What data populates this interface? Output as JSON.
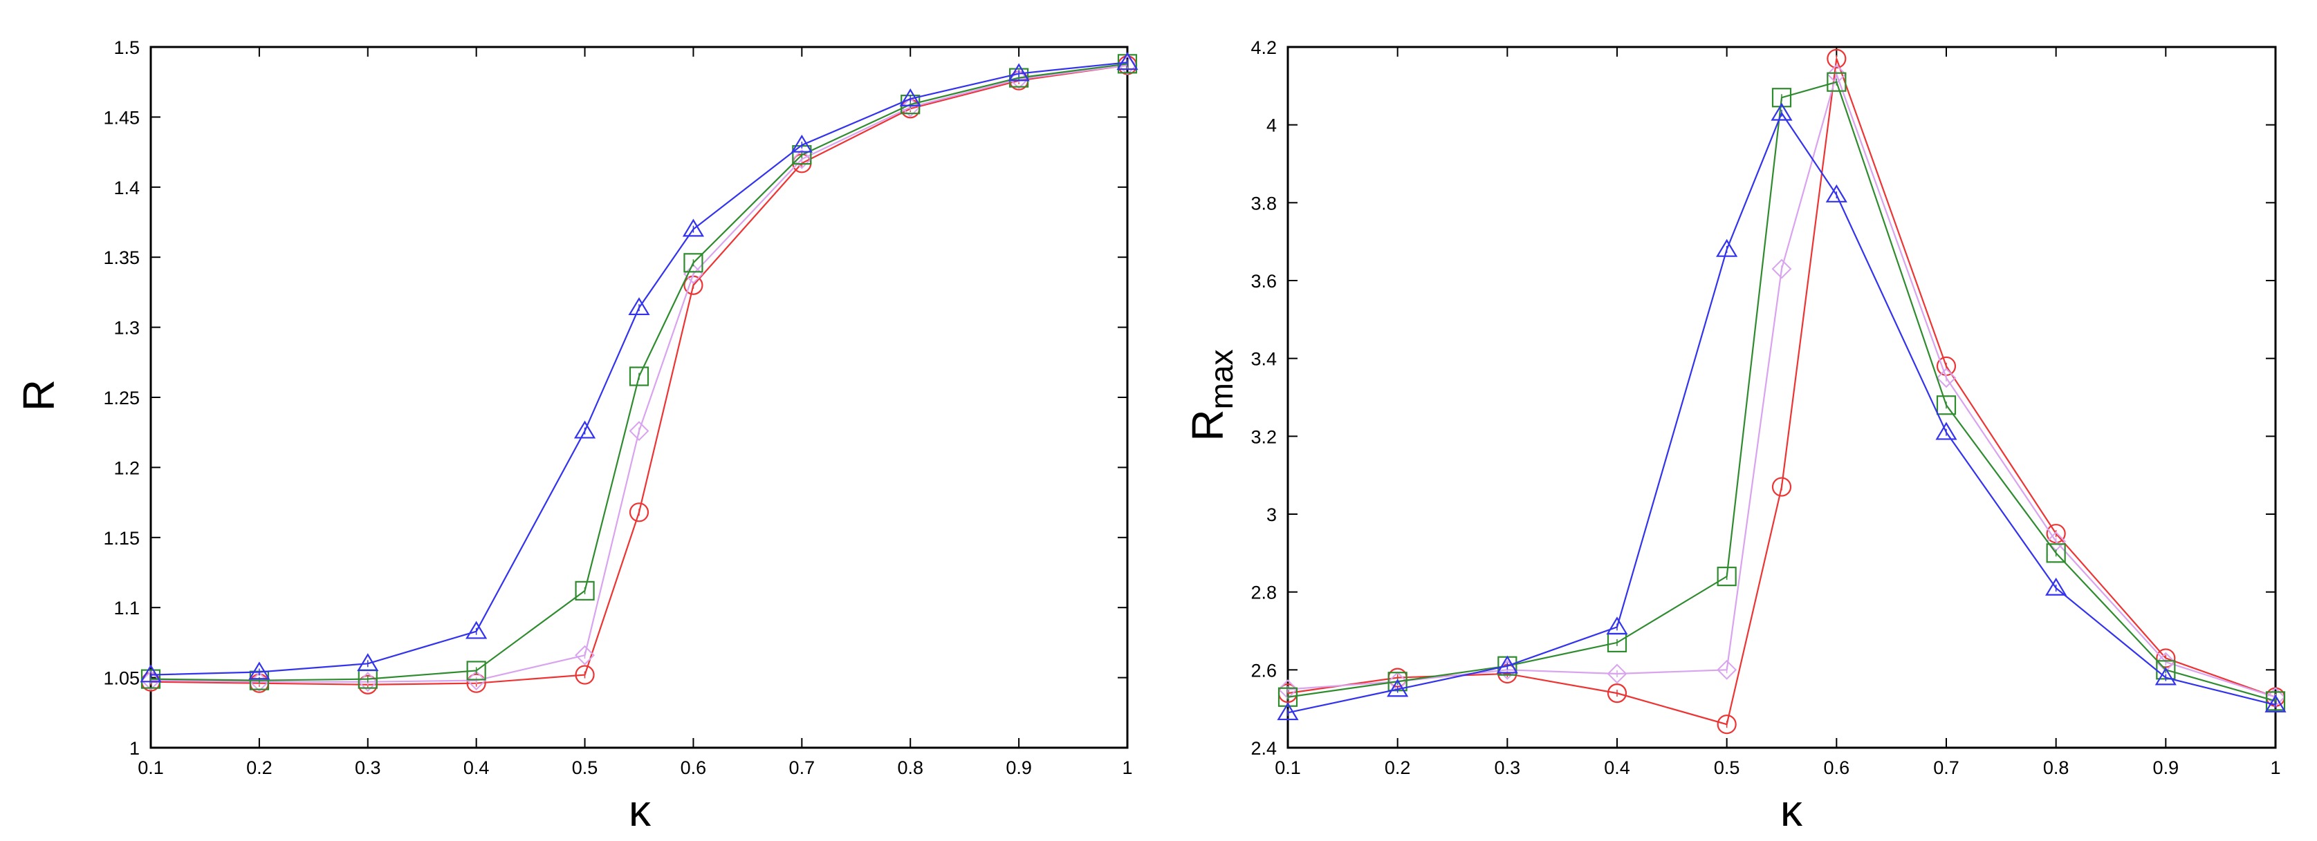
{
  "chart_data": [
    {
      "type": "line",
      "title": "",
      "xlabel": "κ",
      "ylabel": "R",
      "ylabel_sub": "",
      "xlim": [
        0.1,
        1.0
      ],
      "ylim": [
        1.0,
        1.5
      ],
      "xticks": [
        0.1,
        0.2,
        0.3,
        0.4,
        0.5,
        0.6,
        0.7,
        0.8,
        0.9,
        1.0
      ],
      "xtick_labels": [
        "0.1",
        "0.2",
        "0.3",
        "0.4",
        "0.5",
        "0.6",
        "0.7",
        "0.8",
        "0.9",
        "1"
      ],
      "yticks": [
        1.0,
        1.05,
        1.1,
        1.15,
        1.2,
        1.25,
        1.3,
        1.35,
        1.4,
        1.45,
        1.5
      ],
      "ytick_labels": [
        "1",
        "1.05",
        "1.1",
        "1.15",
        "1.2",
        "1.25",
        "1.3",
        "1.35",
        "1.4",
        "1.45",
        "1.5"
      ],
      "grid": false,
      "legend": "none",
      "series": [
        {
          "marker": "triangle",
          "color": "#3333ee",
          "x": [
            0.1,
            0.2,
            0.3,
            0.4,
            0.5,
            0.55,
            0.6,
            0.7,
            0.8,
            0.9,
            1.0
          ],
          "y": [
            1.052,
            1.054,
            1.06,
            1.083,
            1.226,
            1.314,
            1.37,
            1.43,
            1.463,
            1.481,
            1.489
          ]
        },
        {
          "marker": "square",
          "color": "#2e8b2e",
          "x": [
            0.1,
            0.2,
            0.3,
            0.4,
            0.5,
            0.55,
            0.6,
            0.7,
            0.8,
            0.9,
            1.0
          ],
          "y": [
            1.049,
            1.048,
            1.049,
            1.055,
            1.112,
            1.265,
            1.346,
            1.423,
            1.459,
            1.478,
            1.488
          ]
        },
        {
          "marker": "diamond",
          "color": "#d9a3ef",
          "x": [
            0.1,
            0.2,
            0.3,
            0.4,
            0.5,
            0.55,
            0.6,
            0.7,
            0.8,
            0.9,
            1.0
          ],
          "y": [
            1.048,
            1.047,
            1.047,
            1.048,
            1.066,
            1.226,
            1.338,
            1.42,
            1.457,
            1.477,
            1.487
          ]
        },
        {
          "marker": "circle",
          "color": "#ee3333",
          "x": [
            0.1,
            0.2,
            0.3,
            0.4,
            0.5,
            0.55,
            0.6,
            0.7,
            0.8,
            0.9,
            1.0
          ],
          "y": [
            1.047,
            1.046,
            1.045,
            1.046,
            1.052,
            1.168,
            1.33,
            1.417,
            1.456,
            1.476,
            1.487
          ]
        }
      ]
    },
    {
      "type": "line",
      "title": "",
      "xlabel": "κ",
      "ylabel": "R",
      "ylabel_sub": "max",
      "xlim": [
        0.1,
        1.0
      ],
      "ylim": [
        2.4,
        4.2
      ],
      "xticks": [
        0.1,
        0.2,
        0.3,
        0.4,
        0.5,
        0.6,
        0.7,
        0.8,
        0.9,
        1.0
      ],
      "xtick_labels": [
        "0.1",
        "0.2",
        "0.3",
        "0.4",
        "0.5",
        "0.6",
        "0.7",
        "0.8",
        "0.9",
        "1"
      ],
      "yticks": [
        2.4,
        2.6,
        2.8,
        3.0,
        3.2,
        3.4,
        3.6,
        3.8,
        4.0,
        4.2
      ],
      "ytick_labels": [
        "2.4",
        "2.6",
        "2.8",
        "3",
        "3.2",
        "3.4",
        "3.6",
        "3.8",
        "4",
        "4.2"
      ],
      "grid": false,
      "legend": "none",
      "series": [
        {
          "marker": "triangle",
          "color": "#3333ee",
          "x": [
            0.1,
            0.2,
            0.3,
            0.4,
            0.5,
            0.55,
            0.6,
            0.7,
            0.8,
            0.9,
            1.0
          ],
          "y": [
            2.49,
            2.55,
            2.61,
            2.71,
            3.68,
            4.03,
            3.82,
            3.21,
            2.81,
            2.58,
            2.51
          ]
        },
        {
          "marker": "square",
          "color": "#2e8b2e",
          "x": [
            0.1,
            0.2,
            0.3,
            0.4,
            0.5,
            0.55,
            0.6,
            0.7,
            0.8,
            0.9,
            1.0
          ],
          "y": [
            2.53,
            2.57,
            2.61,
            2.67,
            2.84,
            4.07,
            4.11,
            3.28,
            2.9,
            2.6,
            2.52
          ]
        },
        {
          "marker": "diamond",
          "color": "#d9a3ef",
          "x": [
            0.1,
            0.2,
            0.3,
            0.4,
            0.5,
            0.55,
            0.6,
            0.7,
            0.8,
            0.9,
            1.0
          ],
          "y": [
            2.55,
            2.57,
            2.6,
            2.59,
            2.6,
            3.63,
            4.13,
            3.35,
            2.93,
            2.62,
            2.53
          ]
        },
        {
          "marker": "circle",
          "color": "#ee3333",
          "x": [
            0.1,
            0.2,
            0.3,
            0.4,
            0.5,
            0.55,
            0.6,
            0.7,
            0.8,
            0.9,
            1.0
          ],
          "y": [
            2.54,
            2.58,
            2.59,
            2.54,
            2.46,
            3.07,
            4.17,
            3.38,
            2.95,
            2.63,
            2.53
          ]
        }
      ]
    }
  ]
}
